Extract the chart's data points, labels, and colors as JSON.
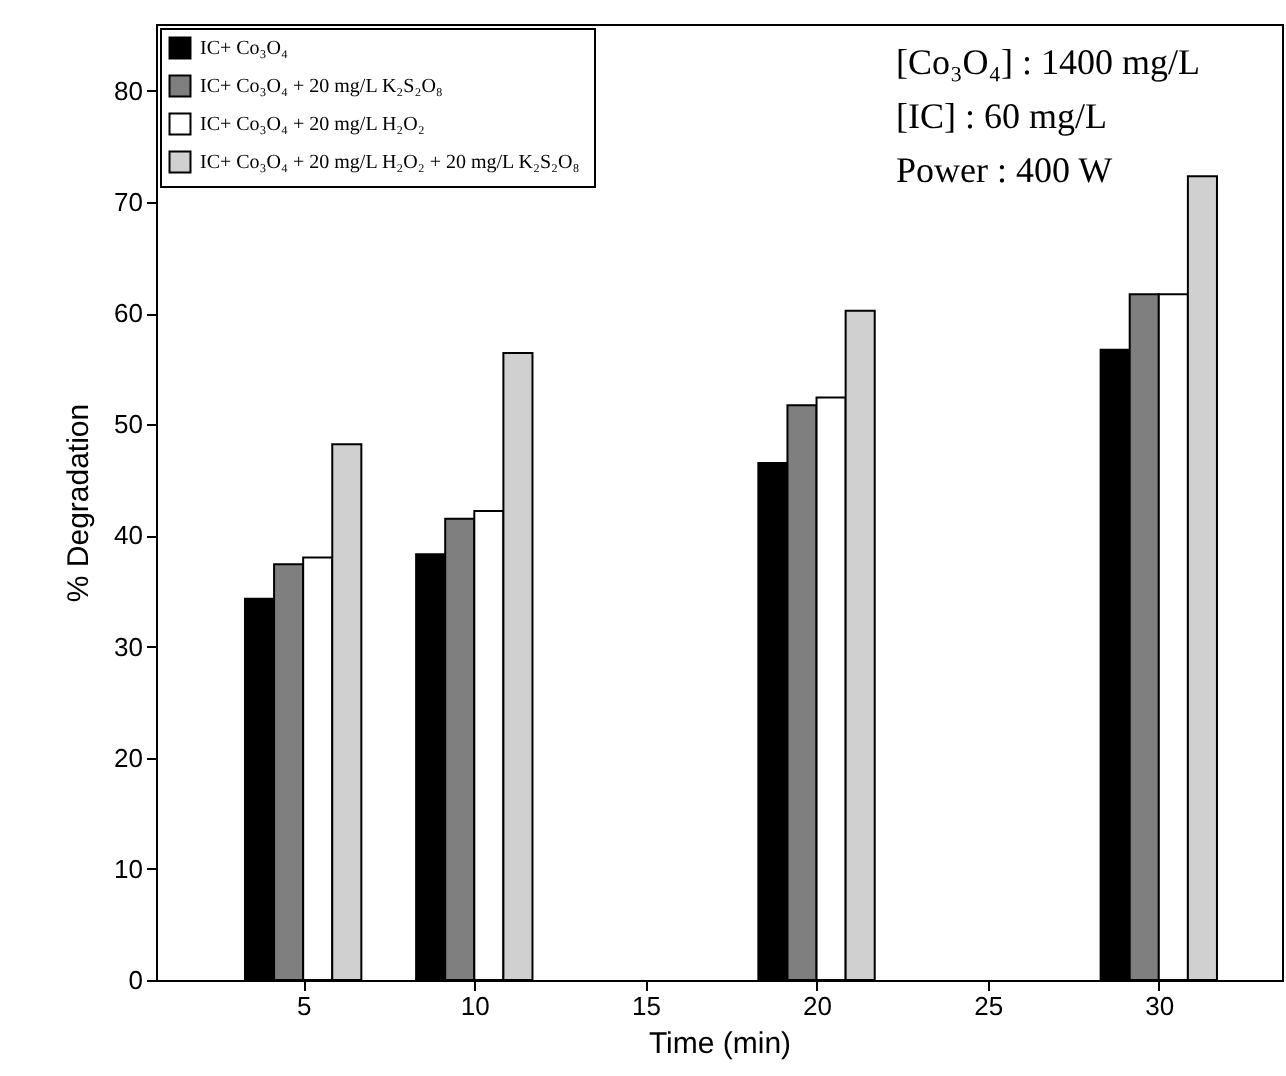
{
  "chart_data": {
    "type": "bar",
    "xlabel": "Time (min)",
    "ylabel": "% Degradation",
    "x": [
      5,
      10,
      20,
      30
    ],
    "series": [
      {
        "name": "IC+ Co₃O₄",
        "color": "#000000",
        "values": [
          34.3,
          38.3,
          46.5,
          56.7
        ]
      },
      {
        "name": "IC+ Co₃O₄ + 20 mg/L  K₂S₂O₈",
        "color": "#7f7f7f",
        "values": [
          37.4,
          41.5,
          51.7,
          61.7
        ]
      },
      {
        "name": "IC+ Co₃O₄ + 20 mg/L H₂O₂",
        "color": "#ffffff",
        "values": [
          38,
          42.2,
          52.4,
          61.7
        ]
      },
      {
        "name": "IC+ Co₃O₄ + 20 mg/L H₂O₂ + 20 mg/L  K₂S₂O₈",
        "color": "#d0d0d0",
        "values": [
          48.2,
          56.4,
          60.2,
          72.3
        ]
      }
    ],
    "xlim": [
      0.7,
      33.6
    ],
    "xticks": [
      5,
      10,
      15,
      20,
      25,
      30
    ],
    "ylim": [
      0,
      86
    ],
    "yticks": [
      0,
      10,
      20,
      30,
      40,
      50,
      60,
      70,
      80
    ],
    "annotations": [
      "[Co₃O₄] : 1400 mg/L",
      "[IC]       : 60 mg/L",
      "Power    : 400 W"
    ],
    "legend": "top left",
    "grid": false
  }
}
